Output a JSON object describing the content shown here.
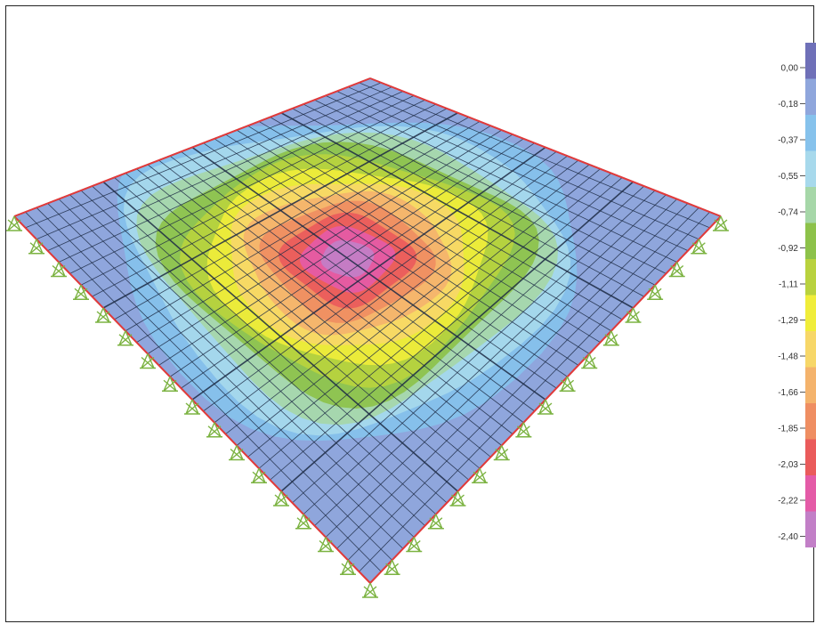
{
  "legend": {
    "labels": [
      "0,00",
      "-0,18",
      "-0,37",
      "-0,55",
      "-0,74",
      "-0,92",
      "-1,11",
      "-1,29",
      "-1,48",
      "-1,66",
      "-1,85",
      "-2,03",
      "-2,22",
      "-2,40"
    ],
    "colors": [
      "#6f70b8",
      "#8fa6dc",
      "#86c2ec",
      "#a7d9ec",
      "#a6d7a8",
      "#8dc24a",
      "#b9d23e",
      "#f0ed3a",
      "#f7d768",
      "#f4b36c",
      "#ef8e62",
      "#ea5b5b",
      "#e45ba7",
      "#c27fc7"
    ]
  },
  "plate": {
    "grid_divisions": 32,
    "panels": 4,
    "max_value": -2.4,
    "edge_color": "#e23a3a",
    "mesh_color": "#1d2b45",
    "support_color": "#7cb342"
  }
}
